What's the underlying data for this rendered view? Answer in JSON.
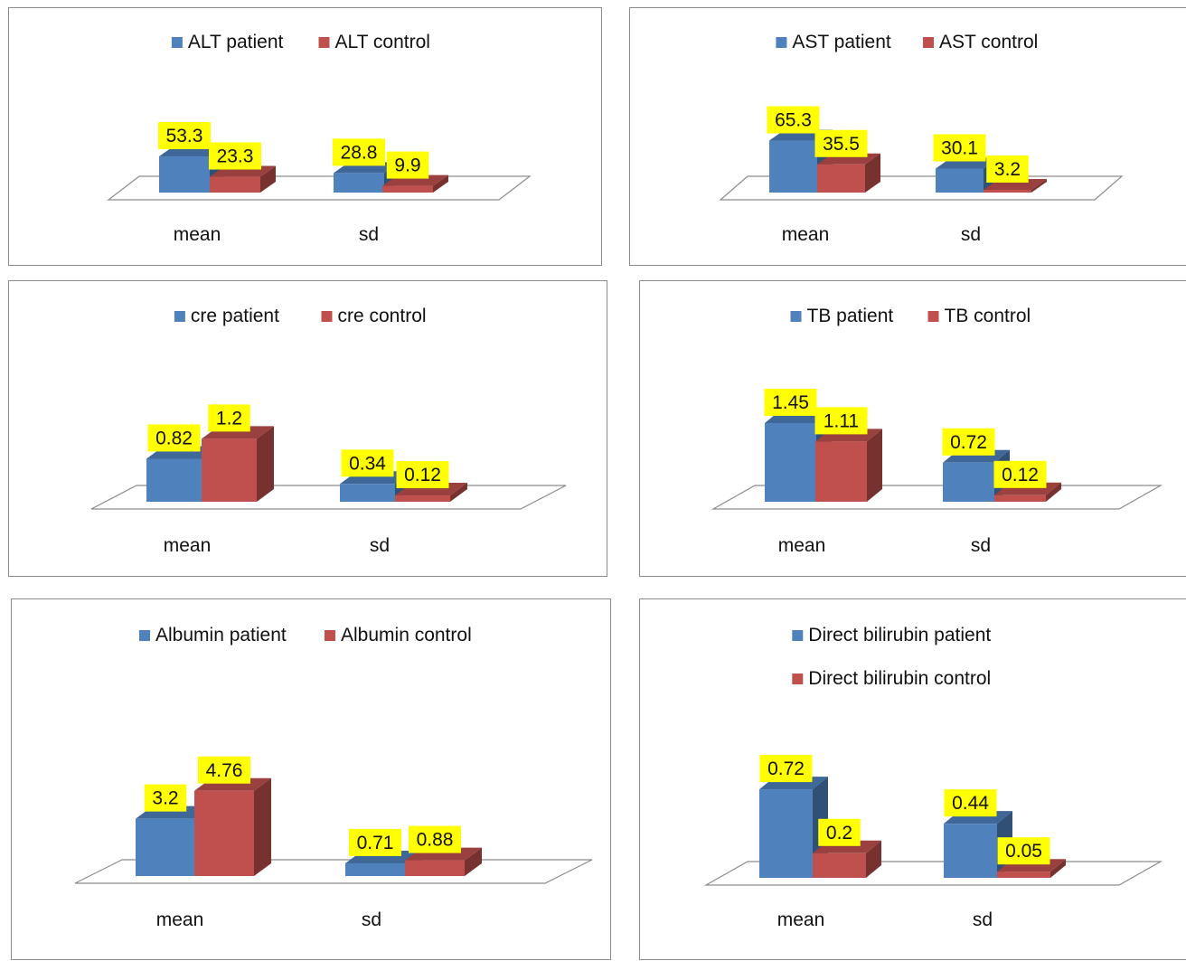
{
  "colors": {
    "patient": "#4f81bd",
    "control": "#c0504d",
    "label_bg": "#ffff00",
    "floor": "#8c8c8c"
  },
  "chart_data": [
    {
      "type": "bar",
      "categories": [
        "mean",
        "sd"
      ],
      "series": [
        {
          "name": "ALT patient",
          "values": [
            53.3,
            28.8
          ]
        },
        {
          "name": "ALT control",
          "values": [
            23.3,
            9.9
          ]
        }
      ],
      "data_labels": [
        [
          "53.3",
          "28.8"
        ],
        [
          "23.3",
          "9.9"
        ]
      ],
      "ylim": [
        0,
        150
      ],
      "legend": "top",
      "grid": false
    },
    {
      "type": "bar",
      "categories": [
        "mean",
        "sd"
      ],
      "series": [
        {
          "name": "AST patient",
          "values": [
            65.3,
            30.1
          ]
        },
        {
          "name": "AST control",
          "values": [
            35.5,
            3.2
          ]
        }
      ],
      "data_labels": [
        [
          "65.3",
          "30.1"
        ],
        [
          "35.5",
          "3.2"
        ]
      ],
      "ylim": [
        0,
        150
      ],
      "legend": "top",
      "grid": false
    },
    {
      "type": "bar",
      "categories": [
        "mean",
        "sd"
      ],
      "series": [
        {
          "name": "cre patient",
          "values": [
            0.82,
            0.34
          ]
        },
        {
          "name": "cre control",
          "values": [
            1.2,
            0.12
          ]
        }
      ],
      "data_labels": [
        [
          "0.82",
          "0.34"
        ],
        [
          "1.2",
          "0.12"
        ]
      ],
      "ylim": [
        0,
        2
      ],
      "legend": "top",
      "grid": false
    },
    {
      "type": "bar",
      "categories": [
        "mean",
        "sd"
      ],
      "series": [
        {
          "name": "TB patient",
          "values": [
            1.45,
            0.72
          ]
        },
        {
          "name": "TB control",
          "values": [
            1.11,
            0.12
          ]
        }
      ],
      "data_labels": [
        [
          "1.45",
          "0.72"
        ],
        [
          "1.11",
          "0.12"
        ]
      ],
      "ylim": [
        0,
        2
      ],
      "legend": "top",
      "grid": false
    },
    {
      "type": "bar",
      "categories": [
        "mean",
        "sd"
      ],
      "series": [
        {
          "name": "Albumin patient",
          "values": [
            3.2,
            0.71
          ]
        },
        {
          "name": "Albumin control",
          "values": [
            4.76,
            0.88
          ]
        }
      ],
      "data_labels": [
        [
          "3.2",
          "0.71"
        ],
        [
          "4.76",
          "0.88"
        ]
      ],
      "ylim": [
        0,
        6
      ],
      "legend": "top",
      "grid": false
    },
    {
      "type": "bar",
      "categories": [
        "mean",
        "sd"
      ],
      "series": [
        {
          "name": "Direct bilirubin patient",
          "values": [
            0.72,
            0.44
          ]
        },
        {
          "name": "Direct bilirubin control",
          "values": [
            0.2,
            0.05
          ]
        }
      ],
      "data_labels": [
        [
          "0.72",
          "0.44"
        ],
        [
          "0.2",
          "0.05"
        ]
      ],
      "ylim": [
        0,
        1
      ],
      "legend": "top-stacked",
      "grid": false
    }
  ]
}
